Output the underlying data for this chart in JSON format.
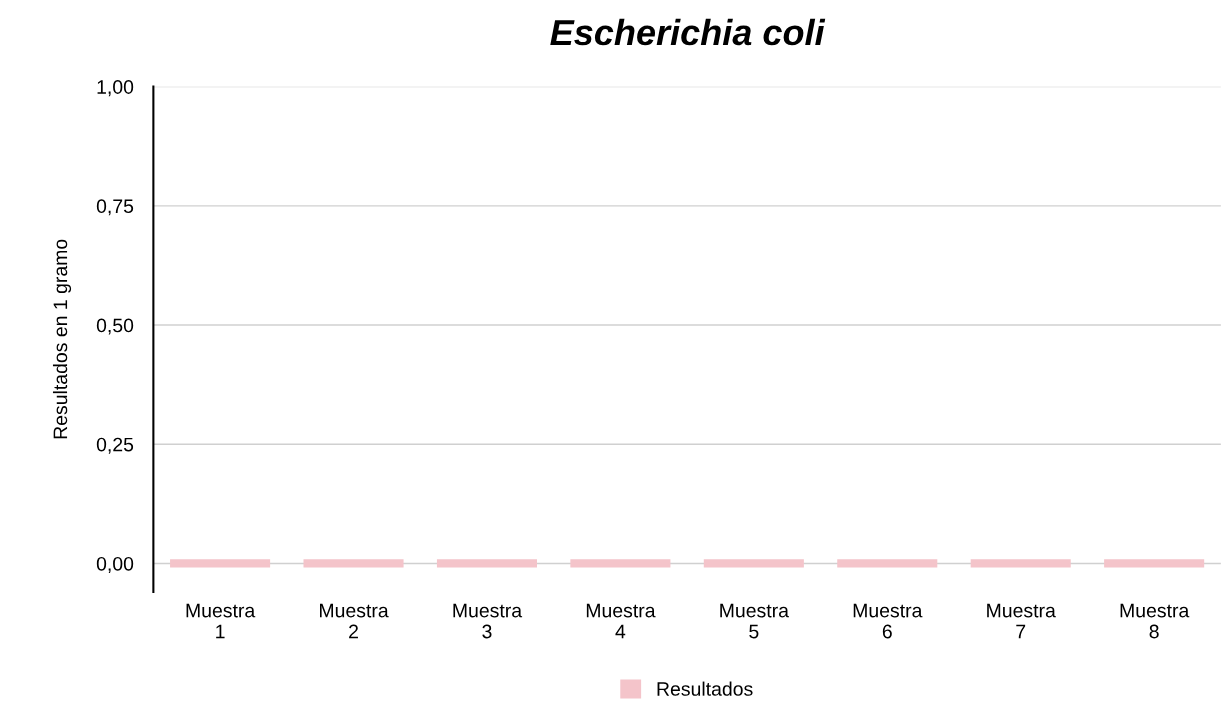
{
  "chart_data": {
    "type": "bar",
    "title": "Escherichia coli",
    "ylabel": "Resultados en 1 gramo",
    "categories": [
      "Muestra\n1",
      "Muestra\n2",
      "Muestra\n3",
      "Muestra\n4",
      "Muestra\n5",
      "Muestra\n6",
      "Muestra\n7",
      "Muestra\n8"
    ],
    "series": [
      {
        "name": "Resultados",
        "color": "#f4c4ca",
        "values": [
          0,
          0,
          0,
          0,
          0,
          0,
          0,
          0
        ]
      }
    ],
    "ylim": [
      -0.06,
      1
    ],
    "yticks": [
      {
        "value": 0,
        "label": "0,00"
      },
      {
        "value": 0.25,
        "label": "0,25"
      },
      {
        "value": 0.5,
        "label": "0,50"
      },
      {
        "value": 0.75,
        "label": "0,75"
      },
      {
        "value": 1,
        "label": "1,00"
      }
    ],
    "grid": "y",
    "legend": "bottom"
  }
}
